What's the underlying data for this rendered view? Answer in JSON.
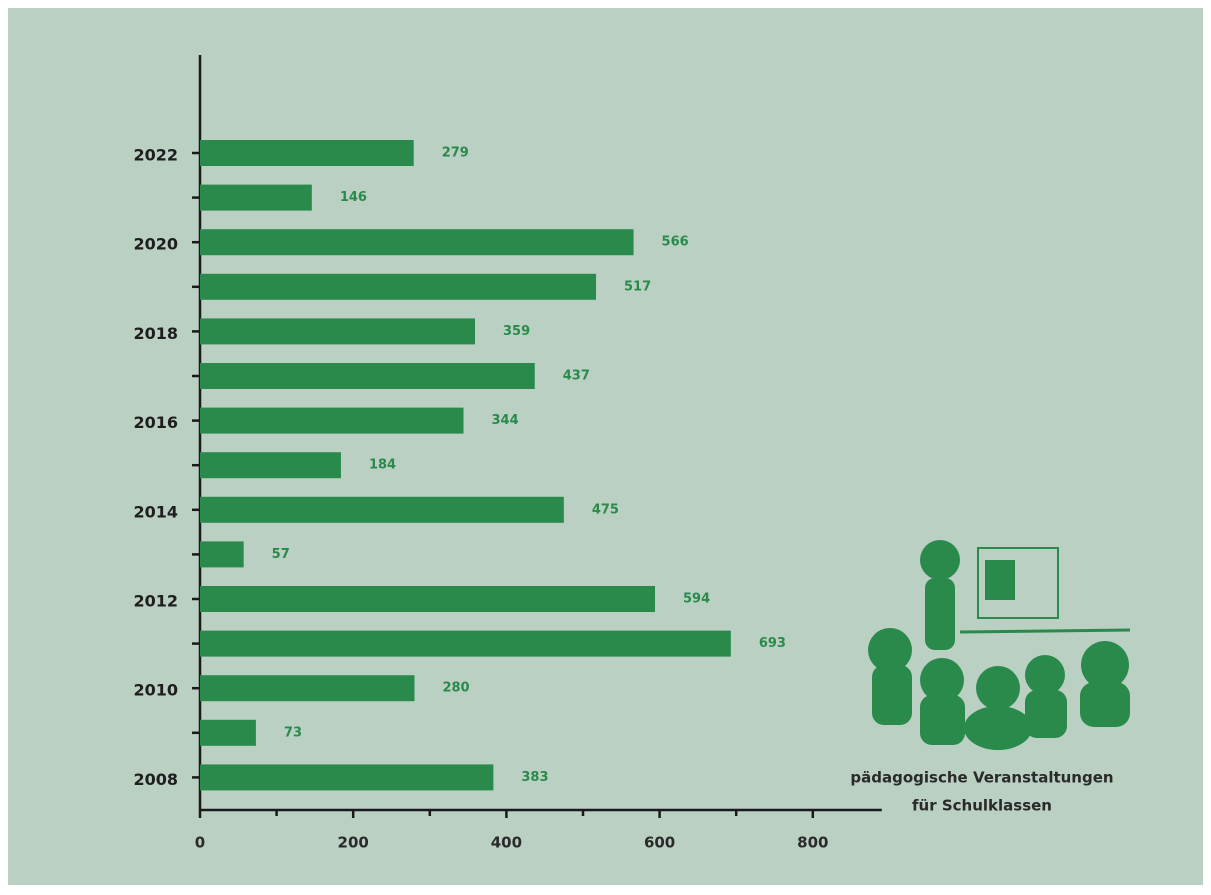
{
  "chart_data": {
    "type": "bar",
    "orientation": "horizontal",
    "categories": [
      "2022",
      null,
      "2020",
      null,
      "2018",
      null,
      "2016",
      null,
      "2014",
      null,
      "2012",
      null,
      "2010",
      null,
      "2008"
    ],
    "values": [
      279,
      146,
      566,
      517,
      359,
      437,
      344,
      184,
      475,
      57,
      594,
      693,
      280,
      73,
      383
    ],
    "color": "#2a8a4c",
    "xlim": [
      0,
      890
    ],
    "xticks": [
      0,
      200,
      400,
      600,
      800
    ],
    "xminorticks": [
      100,
      300,
      500,
      700
    ],
    "annotation": [
      "pädagogische Veranstaltungen",
      "für Schulklassen"
    ]
  }
}
